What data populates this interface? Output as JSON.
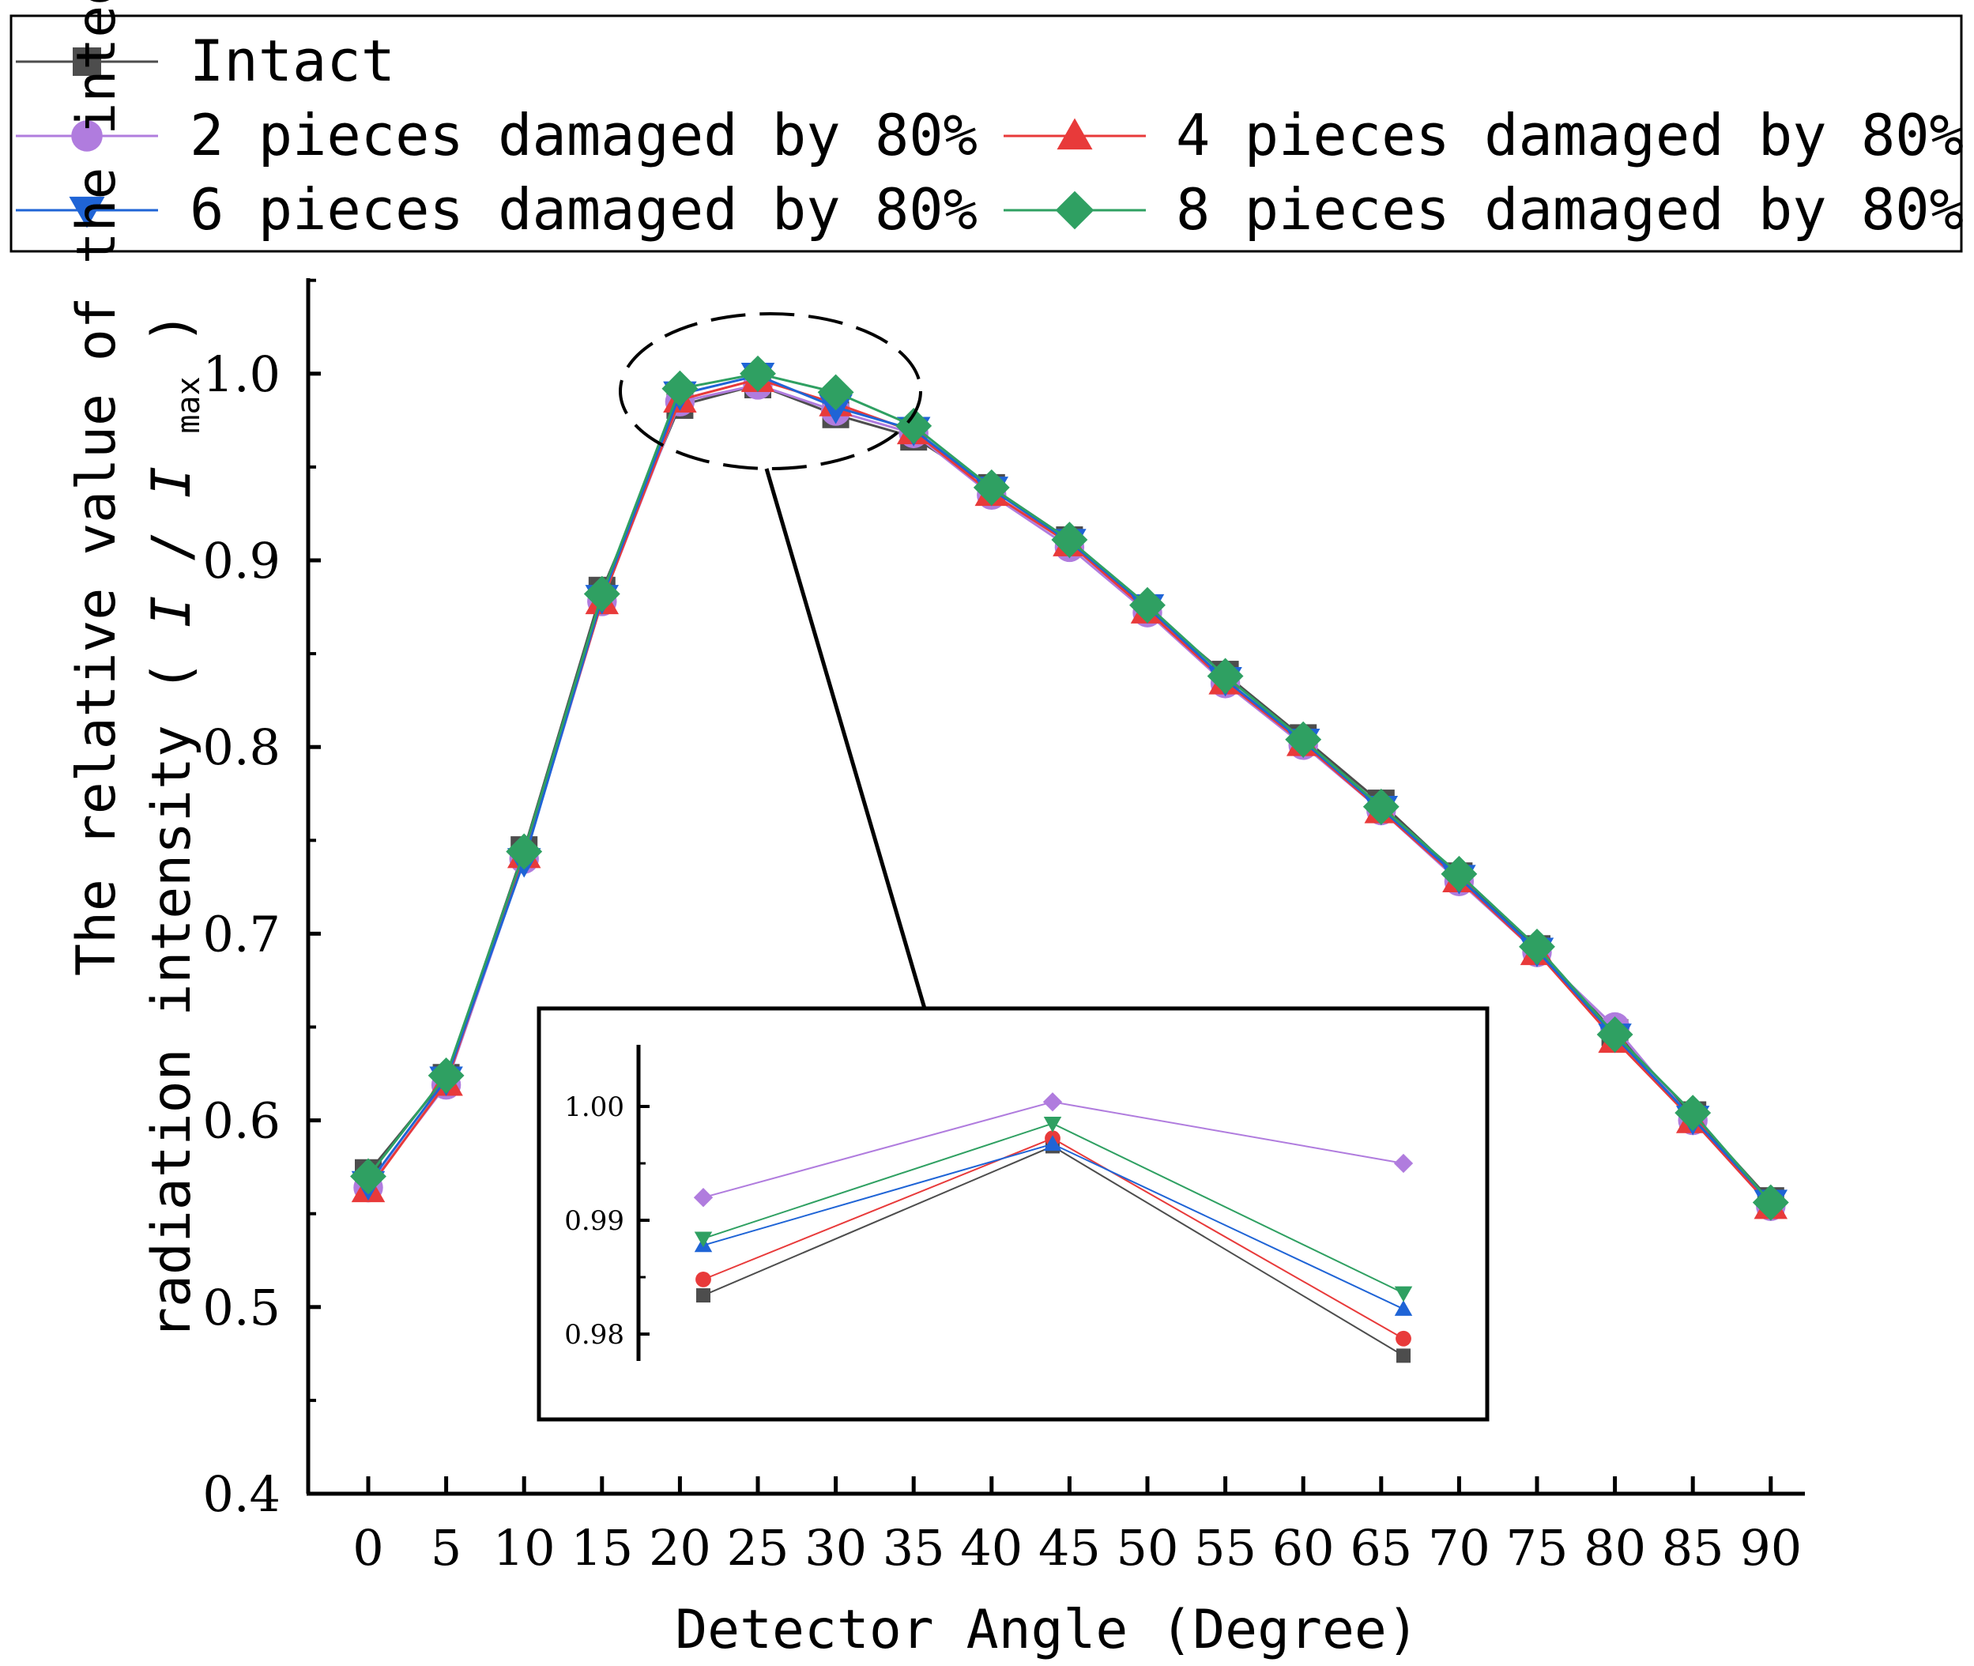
{
  "chart_data": {
    "type": "line",
    "xlabel": "Detector Angle (Degree)",
    "ylabel_line1": "The relative value of the integrated",
    "ylabel_line2_prefix": "radiation intensity",
    "ylabel_open": "(",
    "ylabel_I": "I",
    "ylabel_slash": "/",
    "ylabel_I2": "I",
    "ylabel_sub": "max",
    "ylabel_close": ")",
    "xlim": [
      -4,
      93
    ],
    "ylim": [
      0.4,
      1.05
    ],
    "x": [
      0,
      5,
      10,
      15,
      20,
      25,
      30,
      35,
      40,
      45,
      50,
      55,
      60,
      65,
      70,
      75,
      80,
      85,
      90
    ],
    "xtick_labels": [
      "0",
      "5",
      "10",
      "15",
      "20",
      "25",
      "30",
      "35",
      "40",
      "45",
      "50",
      "55",
      "60",
      "65",
      "70",
      "75",
      "80",
      "85",
      "90"
    ],
    "yticks": [
      0.4,
      0.5,
      0.6,
      0.7,
      0.8,
      0.9,
      1.0
    ],
    "ytick_labels": [
      "0.4",
      "0.5",
      "0.6",
      "0.7",
      "0.8",
      "0.9",
      "1.0"
    ],
    "series": [
      {
        "name": "Intact",
        "color": "#4d4d4d",
        "marker": "square",
        "values": [
          0.572,
          0.623,
          0.745,
          0.884,
          0.983,
          0.994,
          0.978,
          0.966,
          0.939,
          0.911,
          0.874,
          0.839,
          0.805,
          0.77,
          0.731,
          0.692,
          0.647,
          0.603,
          0.557
        ]
      },
      {
        "name": "2 pieces damaged by 80%",
        "color": "#b07cde",
        "marker": "circle",
        "values": [
          0.564,
          0.619,
          0.74,
          0.878,
          0.985,
          0.994,
          0.98,
          0.968,
          0.935,
          0.907,
          0.872,
          0.834,
          0.801,
          0.766,
          0.728,
          0.69,
          0.65,
          0.6,
          0.554
        ]
      },
      {
        "name": "4 pieces damaged by 80%",
        "color": "#e83a3a",
        "marker": "triangle-up",
        "values": [
          0.563,
          0.62,
          0.742,
          0.878,
          0.986,
          0.997,
          0.984,
          0.969,
          0.936,
          0.909,
          0.873,
          0.835,
          0.802,
          0.766,
          0.729,
          0.69,
          0.643,
          0.6,
          0.554
        ]
      },
      {
        "name": "6 pieces damaged by 80%",
        "color": "#1f64d6",
        "marker": "triangle-down",
        "values": [
          0.566,
          0.622,
          0.739,
          0.88,
          0.989,
          0.999,
          0.982,
          0.97,
          0.938,
          0.91,
          0.875,
          0.836,
          0.803,
          0.767,
          0.73,
          0.691,
          0.645,
          0.601,
          0.556
        ]
      },
      {
        "name": "8 pieces damaged by 80%",
        "color": "#2fa062",
        "marker": "diamond",
        "values": [
          0.57,
          0.624,
          0.744,
          0.882,
          0.992,
          1.0,
          0.99,
          0.972,
          0.939,
          0.911,
          0.876,
          0.838,
          0.804,
          0.768,
          0.732,
          0.693,
          0.646,
          0.604,
          0.556
        ]
      }
    ],
    "legend": {
      "placement": "top",
      "entries": [
        "Intact",
        "2 pieces damaged by 80%",
        "4 pieces damaged by 80%",
        "6 pieces damaged by 80%",
        "8 pieces damaged by 80%"
      ]
    },
    "inset": {
      "ylim": [
        0.9775,
        1.0045
      ],
      "yticks": [
        0.98,
        0.99,
        1.0
      ],
      "ytick_labels": [
        "0.98",
        "0.99",
        "1.00"
      ],
      "x_positions": [
        0,
        1,
        2
      ],
      "series": [
        {
          "marker": "square",
          "color": "#4d4d4d",
          "values": [
            0.9834,
            0.9965,
            0.9781
          ]
        },
        {
          "marker": "circle",
          "color": "#e83a3a",
          "values": [
            0.9848,
            0.9972,
            0.9796
          ]
        },
        {
          "marker": "triangle-up",
          "color": "#1f64d6",
          "values": [
            0.9878,
            0.9967,
            0.9822
          ]
        },
        {
          "marker": "triangle-down",
          "color": "#2fa062",
          "values": [
            0.9884,
            0.9985,
            0.9836
          ]
        },
        {
          "marker": "diamond",
          "color": "#b07cde",
          "values": [
            0.992,
            1.0004,
            0.995
          ]
        }
      ]
    }
  }
}
